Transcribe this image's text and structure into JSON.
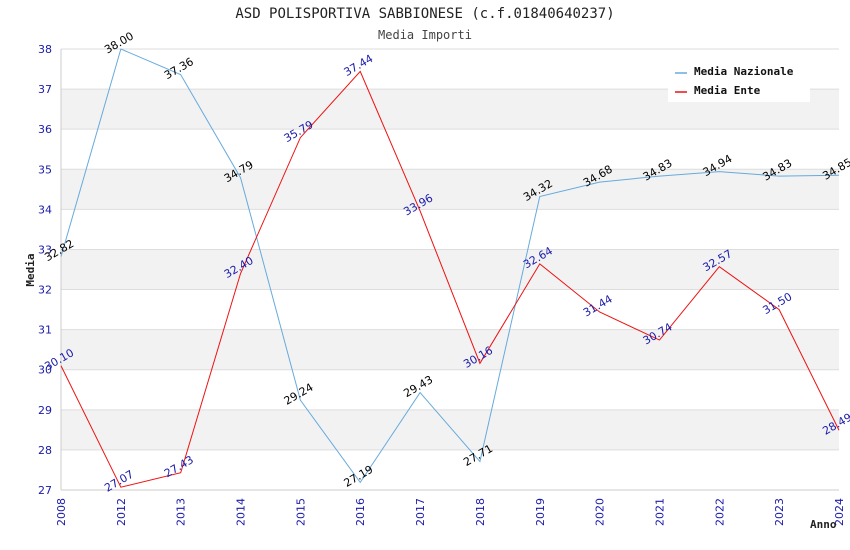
{
  "chart_data": {
    "type": "line",
    "title": "ASD POLISPORTIVA SABBIONESE (c.f.01840640237)",
    "subtitle": "Media Importi",
    "xlabel": "Anno",
    "ylabel": "Media",
    "ylim": [
      27,
      38
    ],
    "yticks": [
      "27",
      "28",
      "29",
      "30",
      "31",
      "32",
      "33",
      "34",
      "35",
      "36",
      "37",
      "38"
    ],
    "categories": [
      "2008",
      "2012",
      "2013",
      "2014",
      "2015",
      "2016",
      "2017",
      "2018",
      "2019",
      "2020",
      "2021",
      "2022",
      "2023",
      "2024"
    ],
    "series": [
      {
        "name": "Media Nazionale",
        "color": "#66aadd",
        "values": [
          32.82,
          38.0,
          37.36,
          34.79,
          29.24,
          27.19,
          29.43,
          27.71,
          34.32,
          34.68,
          34.83,
          34.94,
          34.83,
          34.85
        ],
        "labels": [
          "32.82",
          "38.00",
          "37.36",
          "34.79",
          "29.24",
          "27.19",
          "29.43",
          "27.71",
          "34.32",
          "34.68",
          "34.83",
          "34.94",
          "34.83",
          "34.85"
        ]
      },
      {
        "name": "Media Ente",
        "color": "#ee1111",
        "values": [
          30.1,
          27.07,
          27.43,
          32.4,
          35.79,
          37.44,
          33.96,
          30.16,
          32.64,
          31.44,
          30.74,
          32.57,
          31.5,
          28.49
        ],
        "labels": [
          "30.10",
          "27.07",
          "27.43",
          "32.40",
          "35.79",
          "37.44",
          "33.96",
          "30.16",
          "32.64",
          "31.44",
          "30.74",
          "32.57",
          "31.50",
          "28.49"
        ]
      }
    ],
    "legend_position": "top-right",
    "grid": true
  }
}
